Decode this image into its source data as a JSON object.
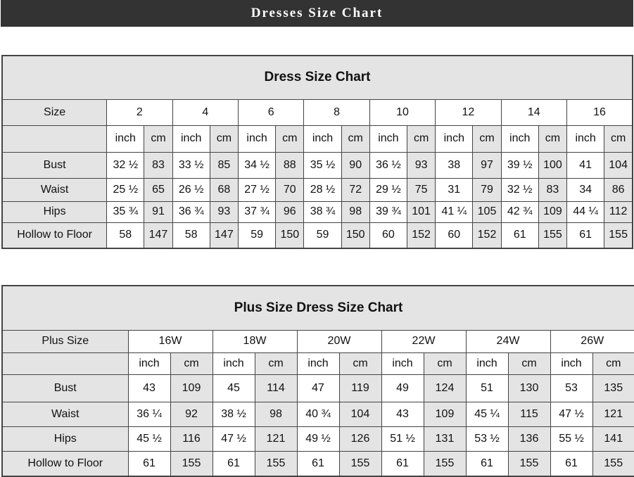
{
  "banner": {
    "title": "Dresses Size Chart"
  },
  "dress_chart": {
    "title": "Dress Size Chart",
    "size_label": "Size",
    "sizes": [
      "2",
      "4",
      "6",
      "8",
      "10",
      "12",
      "14",
      "16"
    ],
    "unit_inch": "inch",
    "unit_cm": "cm",
    "rows": [
      {
        "label": "Bust",
        "values": [
          "32 ½",
          "83",
          "33 ½",
          "85",
          "34 ½",
          "88",
          "35 ½",
          "90",
          "36 ½",
          "93",
          "38",
          "97",
          "39 ½",
          "100",
          "41",
          "104"
        ]
      },
      {
        "label": "Waist",
        "values": [
          "25 ½",
          "65",
          "26 ½",
          "68",
          "27 ½",
          "70",
          "28 ½",
          "72",
          "29 ½",
          "75",
          "31",
          "79",
          "32 ½",
          "83",
          "34",
          "86"
        ]
      },
      {
        "label": "Hips",
        "values": [
          "35 ¾",
          "91",
          "36 ¾",
          "93",
          "37 ¾",
          "96",
          "38 ¾",
          "98",
          "39 ¾",
          "101",
          "41 ¼",
          "105",
          "42 ¾",
          "109",
          "44 ¼",
          "112"
        ]
      },
      {
        "label": "Hollow to Floor",
        "values": [
          "58",
          "147",
          "58",
          "147",
          "59",
          "150",
          "59",
          "150",
          "60",
          "152",
          "60",
          "152",
          "61",
          "155",
          "61",
          "155"
        ]
      }
    ]
  },
  "plus_chart": {
    "title": "Plus Size Dress Size Chart",
    "size_label": "Plus Size",
    "sizes": [
      "16W",
      "18W",
      "20W",
      "22W",
      "24W",
      "26W"
    ],
    "unit_inch": "inch",
    "unit_cm": "cm",
    "rows": [
      {
        "label": "Bust",
        "values": [
          "43",
          "109",
          "45",
          "114",
          "47",
          "119",
          "49",
          "124",
          "51",
          "130",
          "53",
          "135"
        ]
      },
      {
        "label": "Waist",
        "values": [
          "36 ¼",
          "92",
          "38 ½",
          "98",
          "40 ¾",
          "104",
          "43",
          "109",
          "45 ¼",
          "115",
          "47 ½",
          "121"
        ]
      },
      {
        "label": "Hips",
        "values": [
          "45 ½",
          "116",
          "47 ½",
          "121",
          "49 ½",
          "126",
          "51 ½",
          "131",
          "53 ½",
          "136",
          "55 ½",
          "141"
        ]
      },
      {
        "label": "Hollow to Floor",
        "values": [
          "61",
          "155",
          "61",
          "155",
          "61",
          "155",
          "61",
          "155",
          "61",
          "155",
          "61",
          "155"
        ]
      }
    ]
  }
}
